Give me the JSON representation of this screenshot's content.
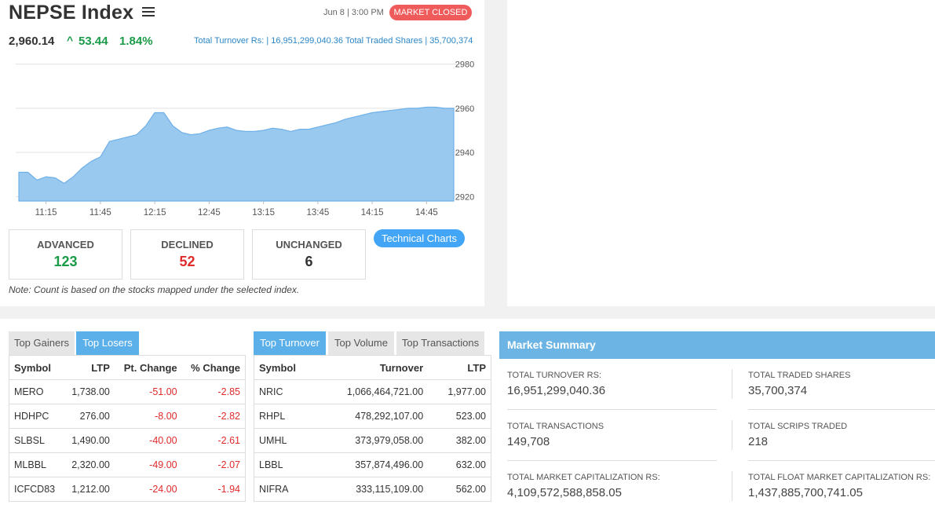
{
  "header": {
    "title": "NEPSE Index",
    "date": "Jun 8 | 3:00 PM",
    "status_badge": "MARKET CLOSED",
    "index_value": "2,960.14",
    "change_arrow": "^",
    "change_points": "53.44",
    "change_percent": "1.84%",
    "turnover_text": "Total Turnover Rs: | 16,951,299,040.36   Total Traded Shares | 35,700,374"
  },
  "chart_data": {
    "type": "area",
    "x_ticks": [
      "11:15",
      "11:45",
      "12:15",
      "12:45",
      "13:15",
      "13:45",
      "14:15",
      "14:45"
    ],
    "y_ticks": [
      "2980",
      "2960",
      "2940",
      "2920"
    ],
    "ylim": [
      2918,
      2982
    ],
    "x": [
      "11:00",
      "11:05",
      "11:10",
      "11:15",
      "11:20",
      "11:25",
      "11:30",
      "11:35",
      "11:40",
      "11:45",
      "11:50",
      "11:55",
      "12:00",
      "12:05",
      "12:10",
      "12:15",
      "12:20",
      "12:25",
      "12:30",
      "12:35",
      "12:40",
      "12:45",
      "12:50",
      "12:55",
      "13:00",
      "13:05",
      "13:10",
      "13:15",
      "13:20",
      "13:25",
      "13:30",
      "13:35",
      "13:40",
      "13:45",
      "13:50",
      "13:55",
      "14:00",
      "14:05",
      "14:10",
      "14:15",
      "14:20",
      "14:25",
      "14:30",
      "14:35",
      "14:40",
      "14:45",
      "14:50",
      "14:55",
      "15:00"
    ],
    "values": [
      2931,
      2931,
      2927.5,
      2929,
      2928.5,
      2926,
      2929,
      2933,
      2936,
      2938,
      2945,
      2946,
      2947,
      2948,
      2952,
      2958,
      2958,
      2952,
      2949,
      2948,
      2948.5,
      2950,
      2951,
      2951.5,
      2950,
      2949.5,
      2949.5,
      2950,
      2951,
      2950.5,
      2949.5,
      2950.5,
      2950.5,
      2951.5,
      2952.5,
      2953.5,
      2955,
      2956,
      2957,
      2958,
      2958.5,
      2959,
      2959.5,
      2960,
      2960,
      2960.5,
      2960.5,
      2960,
      2960
    ],
    "color": "#9ac9ef"
  },
  "counts": {
    "advanced_label": "ADVANCED",
    "advanced_value": "123",
    "declined_label": "DECLINED",
    "declined_value": "52",
    "unchanged_label": "UNCHANGED",
    "unchanged_value": "6",
    "technical_button": "Technical Charts",
    "note": "Note: Count is based on the stocks mapped under the selected index."
  },
  "gainers_tabs": [
    "Top Gainers",
    "Top Losers"
  ],
  "losers_table": {
    "headers": [
      "Symbol",
      "LTP",
      "Pt. Change",
      "% Change"
    ],
    "rows": [
      [
        "MERO",
        "1,738.00",
        "-51.00",
        "-2.85"
      ],
      [
        "HDHPC",
        "276.00",
        "-8.00",
        "-2.82"
      ],
      [
        "SLBSL",
        "1,490.00",
        "-40.00",
        "-2.61"
      ],
      [
        "MLBBL",
        "2,320.00",
        "-49.00",
        "-2.07"
      ],
      [
        "ICFCD83",
        "1,212.00",
        "-24.00",
        "-1.94"
      ]
    ]
  },
  "turnover_tabs": [
    "Top Turnover",
    "Top Volume",
    "Top Transactions"
  ],
  "turnover_table": {
    "headers": [
      "Symbol",
      "Turnover",
      "LTP"
    ],
    "rows": [
      [
        "NRIC",
        "1,066,464,721.00",
        "1,977.00"
      ],
      [
        "RHPL",
        "478,292,107.00",
        "523.00"
      ],
      [
        "UMHL",
        "373,979,058.00",
        "382.00"
      ],
      [
        "LBBL",
        "357,874,496.00",
        "632.00"
      ],
      [
        "NIFRA",
        "333,115,109.00",
        "562.00"
      ]
    ]
  },
  "summary": {
    "title": "Market Summary",
    "turnover_label": "TOTAL TURNOVER RS:",
    "turnover_value": "16,951,299,040.36",
    "traded_shares_label": "TOTAL TRADED SHARES",
    "traded_shares_value": "35,700,374",
    "transactions_label": "TOTAL TRANSACTIONS",
    "transactions_value": "149,708",
    "scrips_label": "TOTAL SCRIPS TRADED",
    "scrips_value": "218",
    "market_cap_label": "TOTAL MARKET CAPITALIZATION RS:",
    "market_cap_value": "4,109,572,588,858.05",
    "float_cap_label": "TOTAL FLOAT MARKET CAPITALIZATION RS:",
    "float_cap_value": "1,437,885,700,741.05"
  },
  "colors": {
    "up": "#1a9b47",
    "down": "#e02b2b",
    "accent": "#5bb0ea",
    "badge": "#ef5b5b"
  }
}
